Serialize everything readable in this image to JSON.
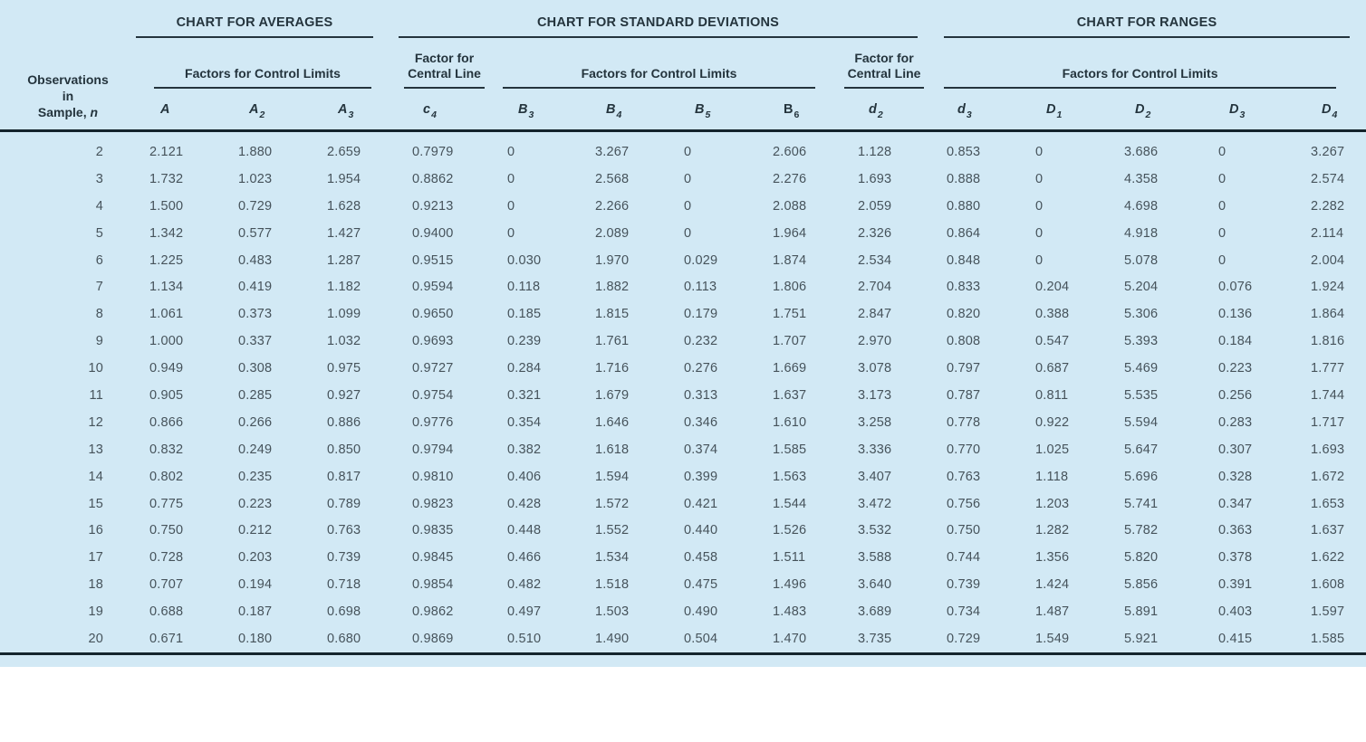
{
  "colors": {
    "table_background": "#d2e9f5",
    "header_text": "#24343d",
    "data_text": "#46535b",
    "rule": "#14242c"
  },
  "table": {
    "corner": {
      "line1": "Observations",
      "line2": "in",
      "line3_prefix": "Sample, ",
      "line3_n": "n"
    },
    "group_titles": {
      "averages": "CHART FOR AVERAGES",
      "std_devs": "CHART FOR STANDARD DEVIATIONS",
      "ranges": "CHART FOR RANGES"
    },
    "subheaders": {
      "averages_limits": "Factors for Control Limits",
      "c4_line1": "Factor for",
      "c4_line2": "Central Line",
      "sd_limits": "Factors for Control Limits",
      "d2_line1": "Factor for",
      "d2_line2": "Central Line",
      "ranges_limits": "Factors for Control Limits"
    },
    "columns": [
      {
        "key": "n"
      },
      {
        "base": "A",
        "sub": "",
        "italic": true
      },
      {
        "base": "A",
        "sub": "2",
        "italic": true
      },
      {
        "base": "A",
        "sub": "3",
        "italic": true
      },
      {
        "base": "c",
        "sub": "4",
        "italic": true
      },
      {
        "base": "B",
        "sub": "3",
        "italic": true
      },
      {
        "base": "B",
        "sub": "4",
        "italic": true
      },
      {
        "base": "B",
        "sub": "5",
        "italic": true
      },
      {
        "base": "B",
        "sub": "6",
        "italic": false
      },
      {
        "base": "d",
        "sub": "2",
        "italic": true
      },
      {
        "base": "d",
        "sub": "3",
        "italic": true
      },
      {
        "base": "D",
        "sub": "1",
        "italic": true
      },
      {
        "base": "D",
        "sub": "2",
        "italic": true
      },
      {
        "base": "D",
        "sub": "3",
        "italic": true
      },
      {
        "base": "D",
        "sub": "4",
        "italic": true
      }
    ],
    "rows": [
      [
        "2",
        "2.121",
        "1.880",
        "2.659",
        "0.7979",
        "0",
        "3.267",
        "0",
        "2.606",
        "1.128",
        "0.853",
        "0",
        "3.686",
        "0",
        "3.267"
      ],
      [
        "3",
        "1.732",
        "1.023",
        "1.954",
        "0.8862",
        "0",
        "2.568",
        "0",
        "2.276",
        "1.693",
        "0.888",
        "0",
        "4.358",
        "0",
        "2.574"
      ],
      [
        "4",
        "1.500",
        "0.729",
        "1.628",
        "0.9213",
        "0",
        "2.266",
        "0",
        "2.088",
        "2.059",
        "0.880",
        "0",
        "4.698",
        "0",
        "2.282"
      ],
      [
        "5",
        "1.342",
        "0.577",
        "1.427",
        "0.9400",
        "0",
        "2.089",
        "0",
        "1.964",
        "2.326",
        "0.864",
        "0",
        "4.918",
        "0",
        "2.114"
      ],
      [
        "6",
        "1.225",
        "0.483",
        "1.287",
        "0.9515",
        "0.030",
        "1.970",
        "0.029",
        "1.874",
        "2.534",
        "0.848",
        "0",
        "5.078",
        "0",
        "2.004"
      ],
      [
        "7",
        "1.134",
        "0.419",
        "1.182",
        "0.9594",
        "0.118",
        "1.882",
        "0.113",
        "1.806",
        "2.704",
        "0.833",
        "0.204",
        "5.204",
        "0.076",
        "1.924"
      ],
      [
        "8",
        "1.061",
        "0.373",
        "1.099",
        "0.9650",
        "0.185",
        "1.815",
        "0.179",
        "1.751",
        "2.847",
        "0.820",
        "0.388",
        "5.306",
        "0.136",
        "1.864"
      ],
      [
        "9",
        "1.000",
        "0.337",
        "1.032",
        "0.9693",
        "0.239",
        "1.761",
        "0.232",
        "1.707",
        "2.970",
        "0.808",
        "0.547",
        "5.393",
        "0.184",
        "1.816"
      ],
      [
        "10",
        "0.949",
        "0.308",
        "0.975",
        "0.9727",
        "0.284",
        "1.716",
        "0.276",
        "1.669",
        "3.078",
        "0.797",
        "0.687",
        "5.469",
        "0.223",
        "1.777"
      ],
      [
        "11",
        "0.905",
        "0.285",
        "0.927",
        "0.9754",
        "0.321",
        "1.679",
        "0.313",
        "1.637",
        "3.173",
        "0.787",
        "0.811",
        "5.535",
        "0.256",
        "1.744"
      ],
      [
        "12",
        "0.866",
        "0.266",
        "0.886",
        "0.9776",
        "0.354",
        "1.646",
        "0.346",
        "1.610",
        "3.258",
        "0.778",
        "0.922",
        "5.594",
        "0.283",
        "1.717"
      ],
      [
        "13",
        "0.832",
        "0.249",
        "0.850",
        "0.9794",
        "0.382",
        "1.618",
        "0.374",
        "1.585",
        "3.336",
        "0.770",
        "1.025",
        "5.647",
        "0.307",
        "1.693"
      ],
      [
        "14",
        "0.802",
        "0.235",
        "0.817",
        "0.9810",
        "0.406",
        "1.594",
        "0.399",
        "1.563",
        "3.407",
        "0.763",
        "1.118",
        "5.696",
        "0.328",
        "1.672"
      ],
      [
        "15",
        "0.775",
        "0.223",
        "0.789",
        "0.9823",
        "0.428",
        "1.572",
        "0.421",
        "1.544",
        "3.472",
        "0.756",
        "1.203",
        "5.741",
        "0.347",
        "1.653"
      ],
      [
        "16",
        "0.750",
        "0.212",
        "0.763",
        "0.9835",
        "0.448",
        "1.552",
        "0.440",
        "1.526",
        "3.532",
        "0.750",
        "1.282",
        "5.782",
        "0.363",
        "1.637"
      ],
      [
        "17",
        "0.728",
        "0.203",
        "0.739",
        "0.9845",
        "0.466",
        "1.534",
        "0.458",
        "1.511",
        "3.588",
        "0.744",
        "1.356",
        "5.820",
        "0.378",
        "1.622"
      ],
      [
        "18",
        "0.707",
        "0.194",
        "0.718",
        "0.9854",
        "0.482",
        "1.518",
        "0.475",
        "1.496",
        "3.640",
        "0.739",
        "1.424",
        "5.856",
        "0.391",
        "1.608"
      ],
      [
        "19",
        "0.688",
        "0.187",
        "0.698",
        "0.9862",
        "0.497",
        "1.503",
        "0.490",
        "1.483",
        "3.689",
        "0.734",
        "1.487",
        "5.891",
        "0.403",
        "1.597"
      ],
      [
        "20",
        "0.671",
        "0.180",
        "0.680",
        "0.9869",
        "0.510",
        "1.490",
        "0.504",
        "1.470",
        "3.735",
        "0.729",
        "1.549",
        "5.921",
        "0.415",
        "1.585"
      ]
    ]
  }
}
